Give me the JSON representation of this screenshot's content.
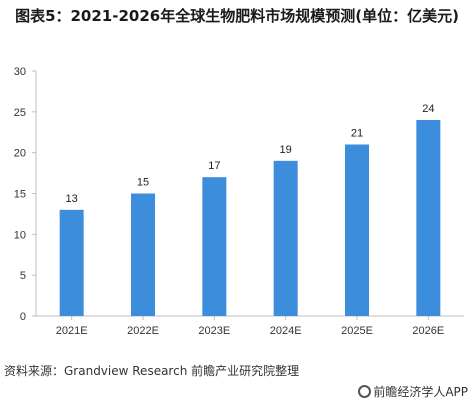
{
  "title": "图表5：2021-2026年全球生物肥料市场规模预测(单位：亿美元)",
  "source": "资料来源：Grandview Research 前瞻产业研究院整理",
  "brand": "前瞻经济学人APP",
  "chart_data": {
    "type": "bar",
    "categories": [
      "2021E",
      "2022E",
      "2023E",
      "2024E",
      "2025E",
      "2026E"
    ],
    "values": [
      13,
      15,
      17,
      19,
      21,
      24
    ],
    "ylim": [
      0,
      30
    ],
    "yticks": [
      0,
      5,
      10,
      15,
      20,
      25,
      30
    ],
    "xlabel": "",
    "ylabel": "",
    "grid": false,
    "bar_color": "#3c8ddb"
  }
}
